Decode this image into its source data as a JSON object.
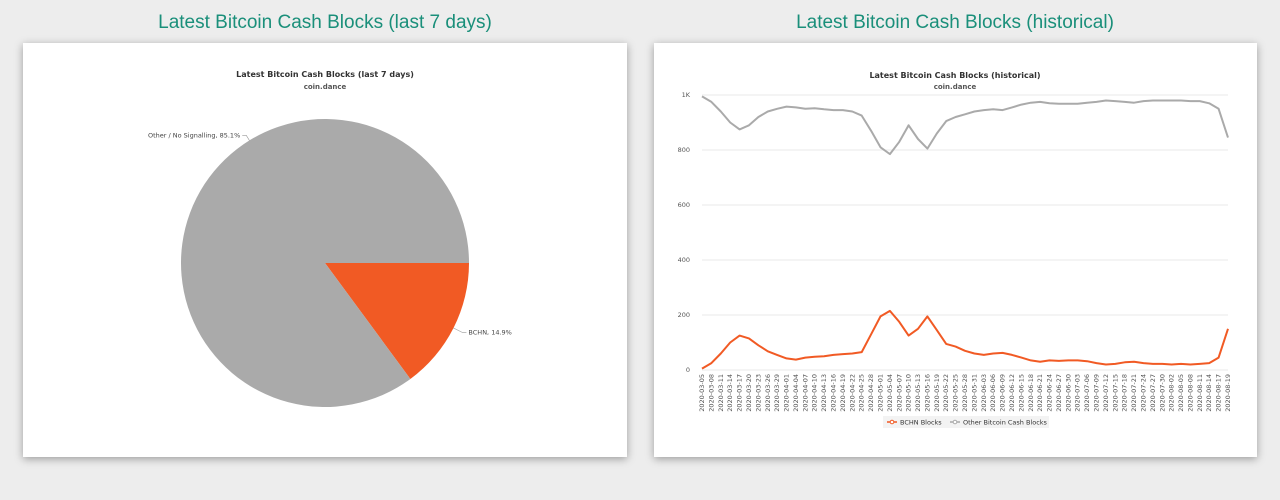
{
  "headings": {
    "left": "Latest Bitcoin Cash Blocks (last 7 days)",
    "right": "Latest Bitcoin Cash Blocks (historical)"
  },
  "colors": {
    "bchn": "#f15a24",
    "other": "#aaaaaa",
    "accent": "#1a8f7a"
  },
  "chart_data": [
    {
      "type": "pie",
      "title": "Latest Bitcoin Cash Blocks (last 7 days)",
      "subtitle": "coin.dance",
      "slices": [
        {
          "label": "Other / No Signalling, 85.1%",
          "value": 85.1,
          "color": "#aaaaaa"
        },
        {
          "label": "BCHN, 14.9%",
          "value": 14.9,
          "color": "#f15a24"
        }
      ]
    },
    {
      "type": "line",
      "title": "Latest Bitcoin Cash Blocks (historical)",
      "subtitle": "coin.dance",
      "ylim": [
        0,
        1000
      ],
      "yticks": [
        "0",
        "200",
        "400",
        "600",
        "800",
        "1K"
      ],
      "ytick_values": [
        0,
        200,
        400,
        600,
        800,
        1000
      ],
      "grid": true,
      "legend_position": "bottom",
      "x": [
        "2020-03-05",
        "2020-03-08",
        "2020-03-11",
        "2020-03-14",
        "2020-03-17",
        "2020-03-20",
        "2020-03-23",
        "2020-03-26",
        "2020-03-29",
        "2020-04-01",
        "2020-04-04",
        "2020-04-07",
        "2020-04-10",
        "2020-04-13",
        "2020-04-16",
        "2020-04-19",
        "2020-04-22",
        "2020-04-25",
        "2020-04-28",
        "2020-05-01",
        "2020-05-04",
        "2020-05-07",
        "2020-05-10",
        "2020-05-13",
        "2020-05-16",
        "2020-05-19",
        "2020-05-22",
        "2020-05-25",
        "2020-05-28",
        "2020-05-31",
        "2020-06-03",
        "2020-06-06",
        "2020-06-09",
        "2020-06-12",
        "2020-06-15",
        "2020-06-18",
        "2020-06-21",
        "2020-06-24",
        "2020-06-27",
        "2020-06-30",
        "2020-07-03",
        "2020-07-06",
        "2020-07-09",
        "2020-07-12",
        "2020-07-15",
        "2020-07-18",
        "2020-07-21",
        "2020-07-24",
        "2020-07-27",
        "2020-07-30",
        "2020-08-02",
        "2020-08-05",
        "2020-08-08",
        "2020-08-11",
        "2020-08-14",
        "2020-08-17",
        "2020-08-19"
      ],
      "series": [
        {
          "name": "BCHN Blocks",
          "color": "#f15a24",
          "values": [
            5,
            25,
            60,
            100,
            125,
            115,
            90,
            68,
            55,
            42,
            38,
            45,
            48,
            50,
            55,
            58,
            60,
            65,
            130,
            195,
            215,
            175,
            125,
            150,
            195,
            145,
            95,
            85,
            70,
            60,
            55,
            60,
            62,
            55,
            45,
            35,
            30,
            35,
            33,
            35,
            35,
            32,
            25,
            20,
            22,
            28,
            30,
            25,
            22,
            22,
            20,
            22,
            20,
            22,
            25,
            45,
            150
          ]
        },
        {
          "name": "Other Bitcoin Cash Blocks",
          "color": "#aaaaaa",
          "values": [
            995,
            975,
            940,
            900,
            875,
            890,
            920,
            940,
            950,
            958,
            955,
            950,
            952,
            948,
            945,
            945,
            940,
            925,
            870,
            810,
            785,
            830,
            890,
            840,
            805,
            860,
            905,
            920,
            930,
            940,
            945,
            948,
            945,
            955,
            965,
            972,
            975,
            970,
            968,
            968,
            968,
            972,
            975,
            980,
            978,
            975,
            972,
            978,
            980,
            980,
            980,
            980,
            978,
            978,
            970,
            950,
            845
          ]
        }
      ]
    }
  ]
}
